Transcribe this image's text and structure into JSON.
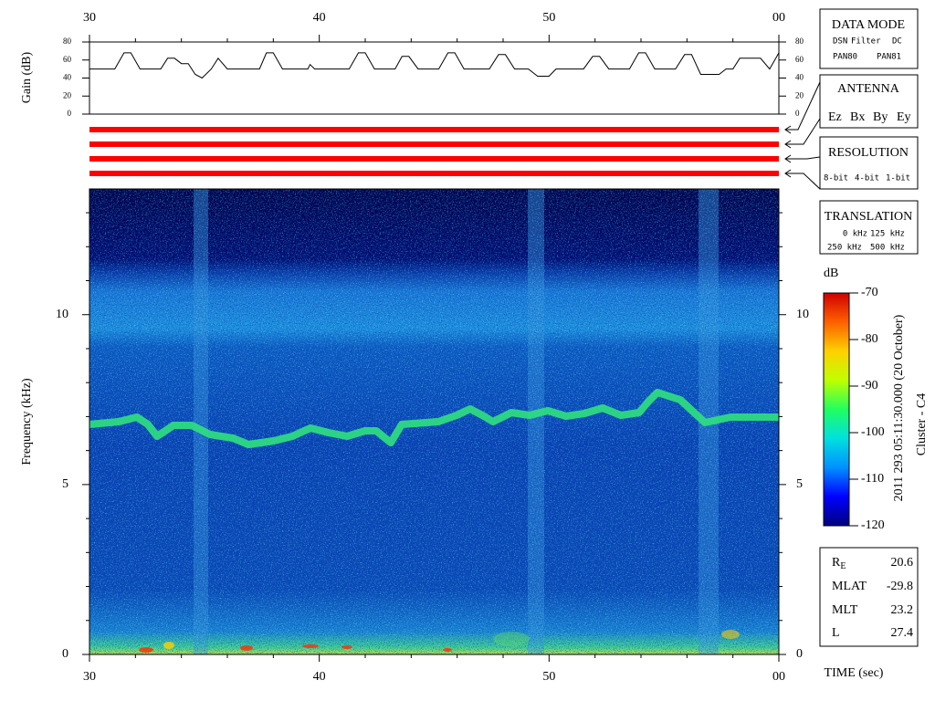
{
  "chart_data": [
    {
      "type": "line",
      "ylabel": "Gain (dB)",
      "xlim": [
        30,
        60
      ],
      "xticks": [
        30,
        40,
        50,
        {
          "value": 60,
          "label": "00"
        }
      ],
      "xminor": [
        32,
        34,
        36,
        38,
        42,
        44,
        46,
        48,
        52,
        54,
        56,
        58
      ],
      "ylim": [
        0,
        80
      ],
      "yticks": [
        0,
        20,
        40,
        60,
        80
      ],
      "color": "#000000",
      "x": [
        30,
        31.1,
        31.5,
        31.8,
        32.2,
        33.1,
        33.4,
        33.7,
        34.0,
        34.3,
        34.6,
        34.9,
        35.3,
        35.6,
        36.0,
        37.4,
        37.7,
        38.0,
        38.4,
        39.5,
        39.6,
        39.8,
        41.3,
        41.7,
        42.0,
        42.4,
        43.3,
        43.6,
        43.9,
        44.3,
        45.2,
        45.6,
        45.9,
        46.3,
        47.4,
        47.8,
        48.1,
        48.5,
        49.1,
        49.5,
        50.0,
        50.3,
        51.5,
        51.9,
        52.2,
        52.6,
        53.5,
        53.9,
        54.2,
        54.6,
        55.5,
        55.9,
        56.2,
        56.6,
        57.4,
        57.7,
        58.0,
        58.3,
        59.2,
        59.6,
        60
      ],
      "values": [
        50,
        50,
        68,
        68,
        50,
        50,
        62,
        62,
        56,
        56,
        44,
        40,
        50,
        62,
        50,
        50,
        68,
        68,
        50,
        50,
        55,
        50,
        50,
        68,
        68,
        50,
        50,
        64,
        64,
        50,
        50,
        68,
        68,
        50,
        50,
        66,
        66,
        50,
        50,
        42,
        42,
        50,
        50,
        64,
        64,
        50,
        50,
        68,
        68,
        50,
        50,
        66,
        66,
        44,
        44,
        50,
        50,
        62,
        62,
        50,
        68
      ]
    },
    {
      "type": "spectrogram",
      "ylabel": "Frequency (kHz)",
      "xlabel": "TIME (sec)",
      "xlim": [
        30,
        60
      ],
      "xticks": [
        30,
        40,
        50,
        {
          "value": 60,
          "label": "00"
        }
      ],
      "xminor": [
        32,
        34,
        36,
        38,
        42,
        44,
        46,
        48,
        52,
        54,
        56,
        58
      ],
      "ylim": [
        0,
        13.7
      ],
      "yticks": [
        0,
        5,
        10
      ],
      "yminor": [
        1,
        2,
        3,
        4,
        6,
        7,
        8,
        9,
        11,
        12,
        13
      ],
      "colorbar": {
        "label": "dB",
        "lim": [
          -120,
          -70
        ],
        "ticks": [
          -70,
          -80,
          -90,
          -100,
          -110,
          -120
        ],
        "colors": [
          "#00007f",
          "#0000ff",
          "#0090ff",
          "#00e0e0",
          "#20ff60",
          "#c0ff00",
          "#ffd000",
          "#ff6000",
          "#d00000"
        ]
      }
    }
  ],
  "side_text": {
    "date": "2011 293 05:11:30.000 (20 October)",
    "spacecraft": "Cluster - C4"
  },
  "mode_boxes": [
    {
      "title": "DATA MODE",
      "items": [
        {
          "text": "DSN",
          "color": "#ff0000"
        },
        {
          "text": "Filter",
          "color": "#00c000"
        },
        {
          "text": "DC",
          "color": "#0000ff"
        },
        {
          "text": "PAN80",
          "color": "#000000"
        },
        {
          "text": "PAN81",
          "color": "#00c8c8"
        }
      ]
    },
    {
      "title": "ANTENNA",
      "items": [
        {
          "text": "Ez",
          "color": "#ff0000"
        },
        {
          "text": "Bx",
          "color": "#00c000"
        },
        {
          "text": "By",
          "color": "#0000ff"
        },
        {
          "text": "Ey",
          "color": "#000000"
        }
      ]
    },
    {
      "title": "RESOLUTION",
      "items": [
        {
          "text": "8-bit",
          "color": "#ff0000"
        },
        {
          "text": "4-bit",
          "color": "#00c000"
        },
        {
          "text": "1-bit",
          "color": "#0000ff"
        }
      ]
    },
    {
      "title": "TRANSLATION",
      "items": [
        {
          "text": "0 kHz",
          "color": "#ff0000"
        },
        {
          "text": "125 kHz",
          "color": "#00c000"
        },
        {
          "text": "250 kHz",
          "color": "#0000ff"
        },
        {
          "text": "500 kHz",
          "color": "#000000"
        }
      ]
    }
  ],
  "info": [
    {
      "label": "R",
      "sub": "E",
      "value": 20.6
    },
    {
      "label": "MLAT",
      "value": -29.8
    },
    {
      "label": "MLT",
      "value": 23.2
    },
    {
      "label": "L",
      "value": 27.4
    }
  ]
}
